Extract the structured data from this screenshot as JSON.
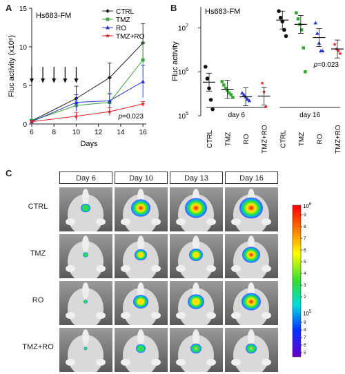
{
  "panels": {
    "a_letter": "A",
    "b_letter": "B",
    "c_letter": "C"
  },
  "chart_data": [
    {
      "type": "line",
      "cell_line": "Hs683-FM",
      "xlabel": "Days",
      "ylabel": "Fluc activity (x10⁶)",
      "xlim": [
        6,
        16.3
      ],
      "ylim": [
        0,
        15
      ],
      "xticks": [
        6,
        8,
        10,
        12,
        14,
        16
      ],
      "yticks": [
        0,
        5,
        10,
        15
      ],
      "legend_position": "top-right",
      "treatment_days": [
        6,
        7,
        8,
        9,
        10
      ],
      "annotation": {
        "p": "p",
        "rest": "=0.023"
      },
      "series": [
        {
          "name": "CTRL",
          "color": "#222222",
          "marker": "diamond",
          "x": [
            6,
            10,
            13,
            16
          ],
          "y": [
            0.4,
            3.3,
            6.0,
            10.5
          ],
          "err": [
            0.2,
            1.6,
            1.9,
            2.5
          ]
        },
        {
          "name": "TMZ",
          "color": "#3aa33a",
          "marker": "square",
          "x": [
            6,
            10,
            13,
            16
          ],
          "y": [
            0.4,
            2.4,
            2.8,
            8.3
          ],
          "err": [
            0.2,
            0.6,
            1.2,
            2.3
          ]
        },
        {
          "name": "RO",
          "color": "#2233cc",
          "marker": "triangle",
          "x": [
            6,
            10,
            13,
            16
          ],
          "y": [
            0.3,
            2.8,
            3.0,
            5.5
          ],
          "err": [
            0.2,
            1.0,
            0.9,
            2.1
          ]
        },
        {
          "name": "TMZ+RO",
          "color": "#e02020",
          "marker": "star",
          "x": [
            6,
            10,
            13,
            16
          ],
          "y": [
            0.3,
            1.0,
            1.6,
            2.6
          ],
          "err": [
            0.2,
            0.5,
            0.5,
            0.3
          ]
        }
      ]
    },
    {
      "type": "scatter",
      "cell_line": "Hs683-FM",
      "ylabel": "Fluc activity",
      "yscale": "log",
      "ylim": [
        100000,
        30000000
      ],
      "yticks": [
        {
          "value": 100000,
          "base": "10",
          "exp": "5"
        },
        {
          "value": 1000000,
          "base": "10",
          "exp": "6"
        },
        {
          "value": 10000000,
          "base": "10",
          "exp": "7"
        }
      ],
      "categories": [
        "CTRL",
        "TMZ",
        "RO",
        "TMZ+RO",
        "CTRL",
        "TMZ",
        "RO",
        "TMZ+RO"
      ],
      "groups": [
        "day 6",
        "day 16"
      ],
      "annotation": {
        "p": "p",
        "rest": "=0.023"
      },
      "series": [
        {
          "name": "CTRL",
          "color": "#111111",
          "marker": "circle",
          "day6": [
            1300000,
            700000,
            420000,
            230000,
            140000
          ],
          "day6_mean": 580000,
          "day16": [
            24000000,
            17000000,
            14000000,
            9000000,
            6500000
          ],
          "day16_mean": 15000000
        },
        {
          "name": "TMZ",
          "color": "#2eaa2e",
          "marker": "square",
          "day6": [
            600000,
            500000,
            420000,
            380000,
            330000,
            300000,
            260000
          ],
          "day6_mean": 400000,
          "day16": [
            22000000,
            16000000,
            12000000,
            9000000,
            3500000,
            1000000
          ],
          "day16_mean": 12000000
        },
        {
          "name": "RO",
          "color": "#2233cc",
          "marker": "triangle",
          "day6": [
            330000,
            300000,
            270000,
            240000,
            220000
          ],
          "day6_mean": 270000,
          "day16": [
            13000000,
            7500000,
            4500000,
            3000000,
            3000000
          ],
          "day16_mean": 6000000
        },
        {
          "name": "TMZ+RO",
          "color": "#e02020",
          "marker": "star",
          "day6": [
            550000,
            350000,
            160000
          ],
          "day6_mean": 280000,
          "day16": [
            4200000,
            3300000,
            3000000,
            2600000
          ],
          "day16_mean": 3300000
        }
      ]
    }
  ],
  "imaging": {
    "days": [
      "Day 6",
      "Day 10",
      "Day 13",
      "Day 16"
    ],
    "rows": [
      {
        "label": "CTRL",
        "sizes": [
          14,
          28,
          32,
          34
        ],
        "intensity": [
          0.5,
          0.9,
          1.0,
          1.0
        ]
      },
      {
        "label": "TMZ",
        "sizes": [
          8,
          18,
          20,
          26
        ],
        "intensity": [
          0.35,
          0.7,
          0.75,
          0.95
        ]
      },
      {
        "label": "RO",
        "sizes": [
          6,
          22,
          24,
          28
        ],
        "intensity": [
          0.2,
          0.7,
          0.75,
          0.9
        ]
      },
      {
        "label": "TMZ+RO",
        "sizes": [
          5,
          14,
          16,
          16
        ],
        "intensity": [
          0.2,
          0.45,
          0.55,
          0.55
        ]
      }
    ],
    "colorbar": {
      "top_base": "10",
      "top_exp": "6",
      "bottom_base": "10",
      "bottom_exp": "5",
      "upper_labels": [
        "9",
        "8",
        "7",
        "6",
        "5",
        "4",
        "3",
        "2"
      ],
      "lower_labels": [
        "9",
        "8",
        "7",
        "6",
        "5"
      ]
    }
  }
}
